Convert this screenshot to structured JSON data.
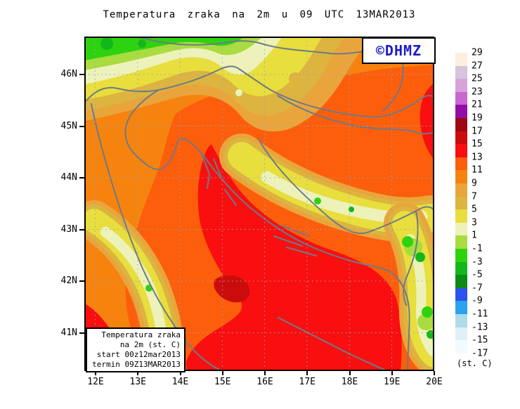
{
  "title": "Temperatura zraka na 2m u 09 UTC 13MAR2013",
  "logo": {
    "text": "©DHMZ",
    "color": "#1c1ccd"
  },
  "info_box": {
    "lines": [
      "Temperatura zraka",
      "na 2m (st. C)",
      "start 00z12mar2013",
      "termin 09Z13MAR2013"
    ]
  },
  "axes": {
    "lat_labels": [
      "46N",
      "45N",
      "44N",
      "43N",
      "42N",
      "41N"
    ],
    "lon_labels": [
      "12E",
      "13E",
      "14E",
      "15E",
      "16E",
      "17E",
      "18E",
      "19E",
      "20E"
    ]
  },
  "legend": {
    "unit": "(st. C)",
    "tick_labels": [
      "29",
      "27",
      "25",
      "23",
      "21",
      "19",
      "17",
      "15",
      "13",
      "11",
      "9",
      "7",
      "5",
      "3",
      "1",
      "-1",
      "-3",
      "-5",
      "-7",
      "-9",
      "-11",
      "-13",
      "-15",
      "-17"
    ],
    "cell_colors": [
      "#fdeedd",
      "#d5c4db",
      "#d8a3da",
      "#c767cf",
      "#920da5",
      "#9c0912",
      "#cb0c0c",
      "#f90f0f",
      "#fd5e0b",
      "#f6830e",
      "#e9a53c",
      "#dcb43f",
      "#e8de3d",
      "#edf2ba",
      "#a9dc40",
      "#2ed30f",
      "#14b71b",
      "#0c8a16",
      "#2b51ee",
      "#29a3ec",
      "#aedbe9",
      "#dff1f6",
      "#f2fbfd"
    ]
  },
  "map_colors": {
    "orange": "#f6830e",
    "orange_red": "#fd5e0b",
    "red": "#f90f0f",
    "dark_red": "#cb0c0c",
    "tan": "#e9a53c",
    "gold": "#dcb43f",
    "yellow": "#e8de3d",
    "pale_yellow": "#edf2ba",
    "yellow_green": "#a9dc40",
    "green": "#2ed30f",
    "mid_green": "#14b71b",
    "border": "#6e7a87",
    "grid": "#8fa6c8",
    "frame": "#000000"
  }
}
